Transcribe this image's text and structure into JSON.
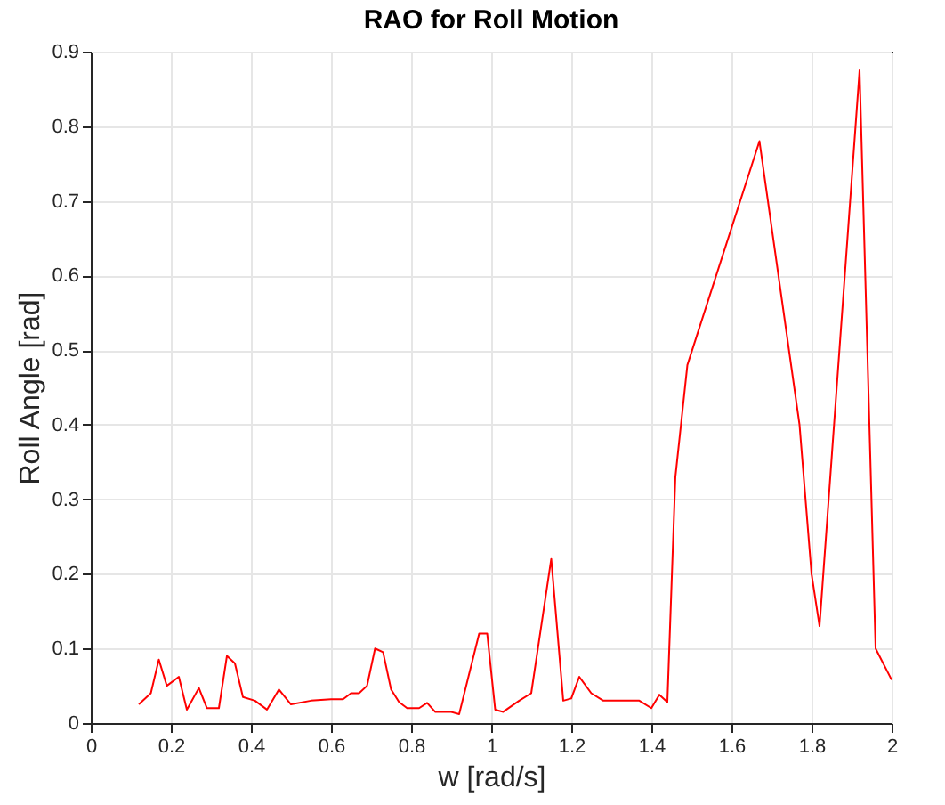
{
  "chart_data": {
    "type": "line",
    "title": "RAO for Roll Motion",
    "xlabel": "w [rad/s]",
    "ylabel": "Roll Angle [rad]",
    "x": [
      0.12,
      0.15,
      0.17,
      0.19,
      0.22,
      0.24,
      0.27,
      0.29,
      0.32,
      0.34,
      0.36,
      0.38,
      0.41,
      0.44,
      0.47,
      0.5,
      0.55,
      0.6,
      0.63,
      0.65,
      0.67,
      0.69,
      0.71,
      0.73,
      0.75,
      0.77,
      0.79,
      0.82,
      0.84,
      0.86,
      0.9,
      0.92,
      0.97,
      0.99,
      1.01,
      1.03,
      1.07,
      1.1,
      1.15,
      1.18,
      1.2,
      1.22,
      1.25,
      1.28,
      1.32,
      1.37,
      1.4,
      1.42,
      1.44,
      1.46,
      1.49,
      1.67,
      1.77,
      1.8,
      1.82,
      1.92,
      1.96,
      2
    ],
    "series": [
      {
        "color": "#ff0000",
        "values": [
          0.025,
          0.04,
          0.085,
          0.05,
          0.062,
          0.018,
          0.047,
          0.02,
          0.02,
          0.09,
          0.08,
          0.035,
          0.03,
          0.018,
          0.045,
          0.025,
          0.03,
          0.032,
          0.032,
          0.04,
          0.04,
          0.05,
          0.1,
          0.095,
          0.045,
          0.028,
          0.02,
          0.02,
          0.027,
          0.015,
          0.015,
          0.012,
          0.12,
          0.12,
          0.018,
          0.015,
          0.03,
          0.04,
          0.22,
          0.03,
          0.033,
          0.062,
          0.04,
          0.03,
          0.03,
          0.03,
          0.02,
          0.038,
          0.028,
          0.33,
          0.48,
          0.78,
          0.4,
          0.2,
          0.13,
          0.875,
          0.1,
          0.058
        ]
      }
    ],
    "xlim": [
      0,
      2
    ],
    "xticks": [
      0,
      0.2,
      0.4,
      0.6,
      0.8,
      1,
      1.2,
      1.4,
      1.6,
      1.8,
      2
    ],
    "ylim": [
      0,
      0.9
    ],
    "yticks": [
      0,
      0.1,
      0.2,
      0.3,
      0.4,
      0.5,
      0.6,
      0.7,
      0.8,
      0.9
    ],
    "grid": true,
    "marker": "none",
    "line_style": "solid"
  }
}
